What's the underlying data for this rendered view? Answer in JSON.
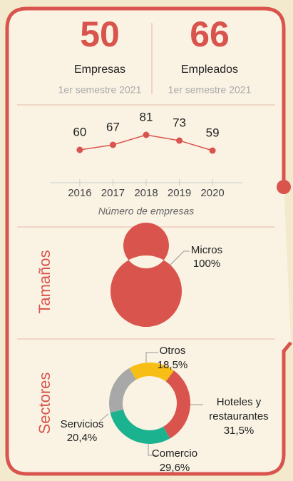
{
  "stats": [
    {
      "value": 50,
      "label": "Empresas",
      "period": "1er semestre 2021"
    },
    {
      "value": 66,
      "label": "Empleados",
      "period": "1er semestre 2021"
    }
  ],
  "chart_data": [
    {
      "type": "line",
      "x": [
        2016,
        2017,
        2018,
        2019,
        2020
      ],
      "values": [
        60,
        67,
        81,
        73,
        59
      ],
      "color": "#d9544d",
      "xlim": [
        2015.1,
        2020.9
      ],
      "ylim": [
        50,
        90
      ],
      "x_label": "Número de empresas",
      "xticks": [
        2016,
        2017,
        2018,
        2019,
        2020
      ]
    },
    {
      "type": "pie",
      "title": "Tamaños",
      "categories": [
        "Micros"
      ],
      "values": [
        100
      ],
      "value_labels": [
        "100%"
      ],
      "colors": [
        "#d9544d"
      ]
    },
    {
      "type": "pie",
      "title": "Sectores",
      "categories": [
        "Otros",
        "Hoteles y restaurantes",
        "Comercio",
        "Servicios"
      ],
      "values": [
        18.5,
        31.5,
        29.6,
        20.4
      ],
      "value_labels": [
        "18,5%",
        "31,5%",
        "29,6%",
        "20,4%"
      ],
      "colors": [
        "#f7bf16",
        "#d9544d",
        "#1bb28f",
        "#a8a8a8"
      ]
    }
  ]
}
